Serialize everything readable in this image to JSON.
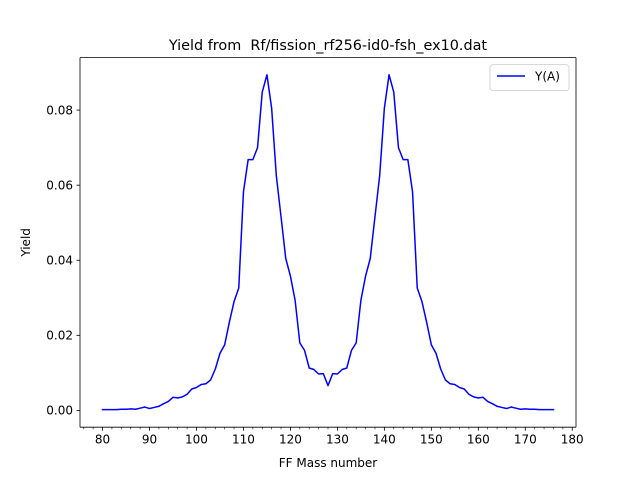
{
  "chart_data": {
    "type": "line",
    "title": "Yield from  Rf/fission_rf256-id0-fsh_ex10.dat",
    "xlabel": "FF Mass number",
    "ylabel": "Yield",
    "xlim": [
      75.2,
      180.8
    ],
    "ylim": [
      -0.00447,
      0.09398
    ],
    "x_major_ticks": [
      80,
      90,
      100,
      110,
      120,
      130,
      140,
      150,
      160,
      170,
      180
    ],
    "x_tick_labels": [
      "80",
      "90",
      "100",
      "110",
      "120",
      "130",
      "140",
      "150",
      "160",
      "170",
      "180"
    ],
    "x_minor_step": 2,
    "y_major_ticks": [
      0.0,
      0.02,
      0.04,
      0.06,
      0.08
    ],
    "y_tick_labels": [
      "0.00",
      "0.02",
      "0.04",
      "0.06",
      "0.08"
    ],
    "grid": false,
    "legend_position": "upper right",
    "series": [
      {
        "name": "Y(A)",
        "color": "#0000ff",
        "x": [
          80,
          81,
          82,
          83,
          84,
          85,
          86,
          87,
          88,
          89,
          90,
          91,
          92,
          93,
          94,
          95,
          96,
          97,
          98,
          99,
          100,
          101,
          102,
          103,
          104,
          105,
          106,
          107,
          108,
          109,
          110,
          111,
          112,
          113,
          114,
          115,
          116,
          117,
          118,
          119,
          120,
          121,
          122,
          123,
          124,
          125,
          126,
          127,
          128,
          129,
          130,
          131,
          132,
          133,
          134,
          135,
          136,
          137,
          138,
          139,
          140,
          141,
          142,
          143,
          144,
          145,
          146,
          147,
          148,
          149,
          150,
          151,
          152,
          153,
          154,
          155,
          156,
          157,
          158,
          159,
          160,
          161,
          162,
          163,
          164,
          165,
          166,
          167,
          168,
          169,
          170,
          171,
          172,
          173,
          174,
          175,
          176
        ],
        "y": [
          0.0002,
          0.0002,
          0.0002,
          0.0002,
          0.0003,
          0.0003,
          0.0004,
          0.0003,
          0.0006,
          0.0009,
          0.0005,
          0.0008,
          0.0011,
          0.0018,
          0.0024,
          0.0035,
          0.0033,
          0.0036,
          0.0043,
          0.0057,
          0.0061,
          0.0069,
          0.0071,
          0.0081,
          0.011,
          0.0152,
          0.0175,
          0.0235,
          0.029,
          0.0326,
          0.0582,
          0.0668,
          0.0668,
          0.07,
          0.0848,
          0.0894,
          0.0805,
          0.0625,
          0.0516,
          0.0405,
          0.0358,
          0.0293,
          0.018,
          0.016,
          0.0113,
          0.0109,
          0.0097,
          0.0098,
          0.0066,
          0.0098,
          0.0097,
          0.0109,
          0.0113,
          0.016,
          0.018,
          0.0293,
          0.0358,
          0.0405,
          0.0516,
          0.0625,
          0.0805,
          0.0894,
          0.0848,
          0.07,
          0.0668,
          0.0668,
          0.0582,
          0.0326,
          0.029,
          0.0235,
          0.0175,
          0.0152,
          0.011,
          0.0081,
          0.0071,
          0.0069,
          0.0061,
          0.0057,
          0.0043,
          0.0036,
          0.0033,
          0.0035,
          0.0024,
          0.0018,
          0.0011,
          0.0008,
          0.0005,
          0.0009,
          0.0006,
          0.0003,
          0.0004,
          0.0003,
          0.0003,
          0.0002,
          0.0002,
          0.0002,
          0.0002
        ]
      }
    ]
  }
}
